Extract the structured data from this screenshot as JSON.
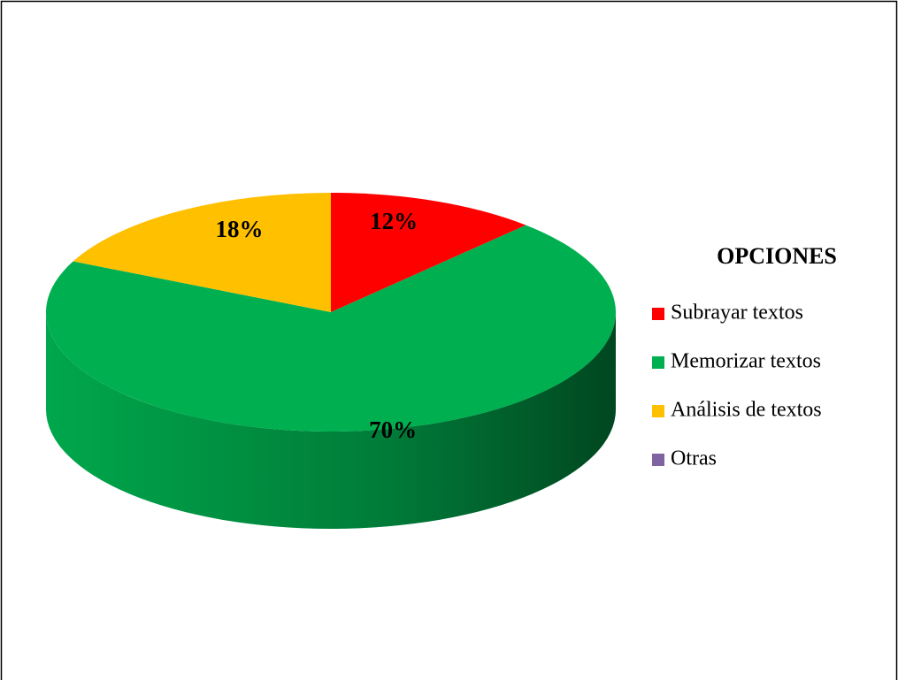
{
  "chart_data": {
    "type": "pie",
    "legend_title": "OPCIONES",
    "categories": [
      "Subrayar textos",
      "Memorizar textos",
      "Análisis de textos",
      "Otras"
    ],
    "values": [
      12,
      70,
      18,
      0
    ],
    "value_labels": [
      "12%",
      "70%",
      "18%",
      null
    ],
    "colors": [
      "#ff0000",
      "#00b050",
      "#ffc000",
      "#8064a2"
    ],
    "legend": "right"
  }
}
